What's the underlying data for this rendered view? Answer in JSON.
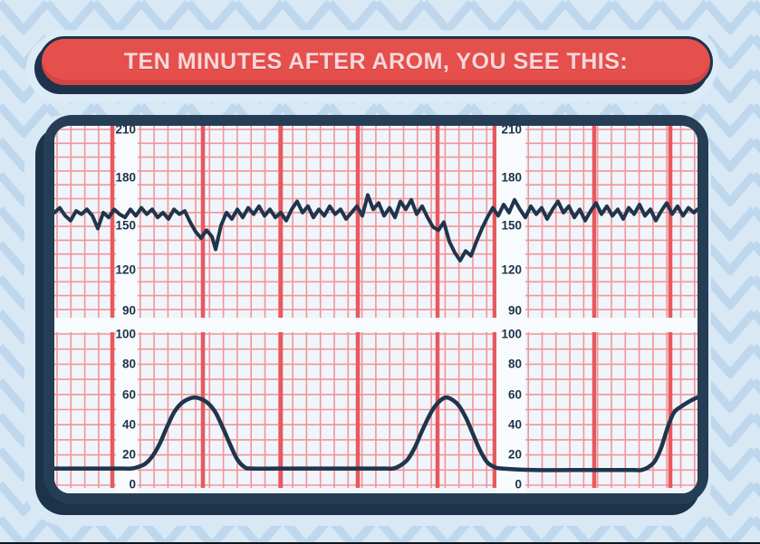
{
  "banner": {
    "label": "TEN MINUTES AFTER AROM, YOU SEE THIS:"
  },
  "colors": {
    "background": "#d8e8f5",
    "pattern_chevron": "#bed7ec",
    "banner_fill": "#e5504d",
    "banner_text": "#f8d7da",
    "outline_navy": "#1c3349",
    "monitor_frame": "#263d56",
    "screen_background": "#eff5fb",
    "label_strip": "#f8fbfd",
    "grid_thin_red": "#f29598",
    "grid_thick_red": "#e8585c",
    "trace_navy": "#1f354c",
    "axis_label_text": "#1d3349"
  },
  "chart_data": [
    {
      "type": "line",
      "name": "fetal-heart-rate-trace",
      "title": "",
      "ylabel": "FHR scale printed on strip",
      "ytick_labels": [
        "210",
        "180",
        "150",
        "120",
        "90"
      ],
      "ylim": [
        90,
        210
      ],
      "xlim": [
        0,
        710
      ],
      "x_unit": "strip-position",
      "grid": true,
      "legend": false,
      "series": [
        {
          "name": "fetal heart rate (bpm)",
          "points": [
            [
              0,
              158
            ],
            [
              6,
              161
            ],
            [
              12,
              156
            ],
            [
              18,
              153
            ],
            [
              24,
              159
            ],
            [
              30,
              157
            ],
            [
              36,
              160
            ],
            [
              42,
              156
            ],
            [
              48,
              148
            ],
            [
              54,
              158
            ],
            [
              60,
              155
            ],
            [
              66,
              160
            ],
            [
              72,
              157
            ],
            [
              78,
              155
            ],
            [
              84,
              160
            ],
            [
              90,
              156
            ],
            [
              96,
              161
            ],
            [
              102,
              157
            ],
            [
              108,
              160
            ],
            [
              114,
              155
            ],
            [
              120,
              158
            ],
            [
              126,
              154
            ],
            [
              132,
              160
            ],
            [
              138,
              157
            ],
            [
              144,
              159
            ],
            [
              150,
              152
            ],
            [
              156,
              146
            ],
            [
              162,
              142
            ],
            [
              168,
              147
            ],
            [
              174,
              143
            ],
            [
              178,
              135
            ],
            [
              184,
              150
            ],
            [
              190,
              158
            ],
            [
              196,
              154
            ],
            [
              202,
              160
            ],
            [
              208,
              155
            ],
            [
              214,
              161
            ],
            [
              220,
              157
            ],
            [
              226,
              162
            ],
            [
              232,
              156
            ],
            [
              238,
              160
            ],
            [
              244,
              155
            ],
            [
              250,
              158
            ],
            [
              256,
              153
            ],
            [
              262,
              160
            ],
            [
              268,
              165
            ],
            [
              274,
              158
            ],
            [
              280,
              162
            ],
            [
              286,
              155
            ],
            [
              292,
              160
            ],
            [
              298,
              156
            ],
            [
              304,
              162
            ],
            [
              310,
              157
            ],
            [
              316,
              160
            ],
            [
              322,
              154
            ],
            [
              328,
              158
            ],
            [
              334,
              162
            ],
            [
              340,
              156
            ],
            [
              346,
              169
            ],
            [
              352,
              160
            ],
            [
              358,
              164
            ],
            [
              364,
              156
            ],
            [
              370,
              161
            ],
            [
              376,
              155
            ],
            [
              382,
              165
            ],
            [
              388,
              160
            ],
            [
              394,
              166
            ],
            [
              400,
              157
            ],
            [
              406,
              162
            ],
            [
              412,
              155
            ],
            [
              418,
              149
            ],
            [
              424,
              147
            ],
            [
              430,
              152
            ],
            [
              436,
              140
            ],
            [
              442,
              133
            ],
            [
              448,
              128
            ],
            [
              454,
              134
            ],
            [
              460,
              131
            ],
            [
              466,
              140
            ],
            [
              472,
              148
            ],
            [
              478,
              155
            ],
            [
              484,
              161
            ],
            [
              490,
              156
            ],
            [
              496,
              163
            ],
            [
              502,
              158
            ],
            [
              508,
              166
            ],
            [
              514,
              160
            ],
            [
              520,
              155
            ],
            [
              526,
              162
            ],
            [
              532,
              157
            ],
            [
              538,
              161
            ],
            [
              544,
              154
            ],
            [
              550,
              160
            ],
            [
              556,
              165
            ],
            [
              562,
              158
            ],
            [
              568,
              162
            ],
            [
              574,
              155
            ],
            [
              580,
              160
            ],
            [
              586,
              153
            ],
            [
              592,
              159
            ],
            [
              598,
              164
            ],
            [
              604,
              157
            ],
            [
              610,
              162
            ],
            [
              616,
              156
            ],
            [
              622,
              160
            ],
            [
              628,
              154
            ],
            [
              634,
              161
            ],
            [
              640,
              157
            ],
            [
              646,
              163
            ],
            [
              652,
              156
            ],
            [
              658,
              160
            ],
            [
              664,
              153
            ],
            [
              670,
              159
            ],
            [
              676,
              164
            ],
            [
              682,
              157
            ],
            [
              688,
              162
            ],
            [
              694,
              156
            ],
            [
              700,
              161
            ],
            [
              706,
              158
            ],
            [
              710,
              160
            ]
          ]
        }
      ]
    },
    {
      "type": "line",
      "name": "uterine-contractions-trace",
      "title": "",
      "ylabel": "Uterine activity scale printed on strip",
      "ytick_labels": [
        "100",
        "80",
        "60",
        "40",
        "20",
        "0"
      ],
      "ylim": [
        0,
        100
      ],
      "xlim": [
        0,
        710
      ],
      "x_unit": "strip-position",
      "grid": true,
      "legend": false,
      "series": [
        {
          "name": "uterine contractions (toco)",
          "points": [
            [
              0,
              11
            ],
            [
              40,
              11
            ],
            [
              70,
              11
            ],
            [
              85,
              11
            ],
            [
              92,
              12
            ],
            [
              100,
              14
            ],
            [
              108,
              19
            ],
            [
              116,
              27
            ],
            [
              124,
              38
            ],
            [
              132,
              48
            ],
            [
              140,
              54
            ],
            [
              148,
              57
            ],
            [
              155,
              58
            ],
            [
              162,
              57
            ],
            [
              170,
              54
            ],
            [
              178,
              48
            ],
            [
              186,
              38
            ],
            [
              194,
              27
            ],
            [
              202,
              17
            ],
            [
              210,
              12
            ],
            [
              218,
              11
            ],
            [
              260,
              11
            ],
            [
              300,
              11
            ],
            [
              340,
              11
            ],
            [
              366,
              11
            ],
            [
              374,
              11
            ],
            [
              382,
              13
            ],
            [
              390,
              17
            ],
            [
              398,
              25
            ],
            [
              406,
              36
            ],
            [
              414,
              46
            ],
            [
              420,
              52
            ],
            [
              426,
              56
            ],
            [
              432,
              58
            ],
            [
              438,
              57
            ],
            [
              446,
              53
            ],
            [
              454,
              45
            ],
            [
              462,
              34
            ],
            [
              470,
              23
            ],
            [
              478,
              15
            ],
            [
              486,
              12
            ],
            [
              494,
              11
            ],
            [
              530,
              10
            ],
            [
              570,
              10
            ],
            [
              610,
              10
            ],
            [
              640,
              10
            ],
            [
              648,
              10
            ],
            [
              656,
              12
            ],
            [
              663,
              16
            ],
            [
              670,
              25
            ],
            [
              677,
              38
            ],
            [
              684,
              48
            ],
            [
              692,
              52
            ],
            [
              700,
              55
            ],
            [
              706,
              57
            ],
            [
              710,
              58
            ]
          ]
        }
      ]
    }
  ]
}
